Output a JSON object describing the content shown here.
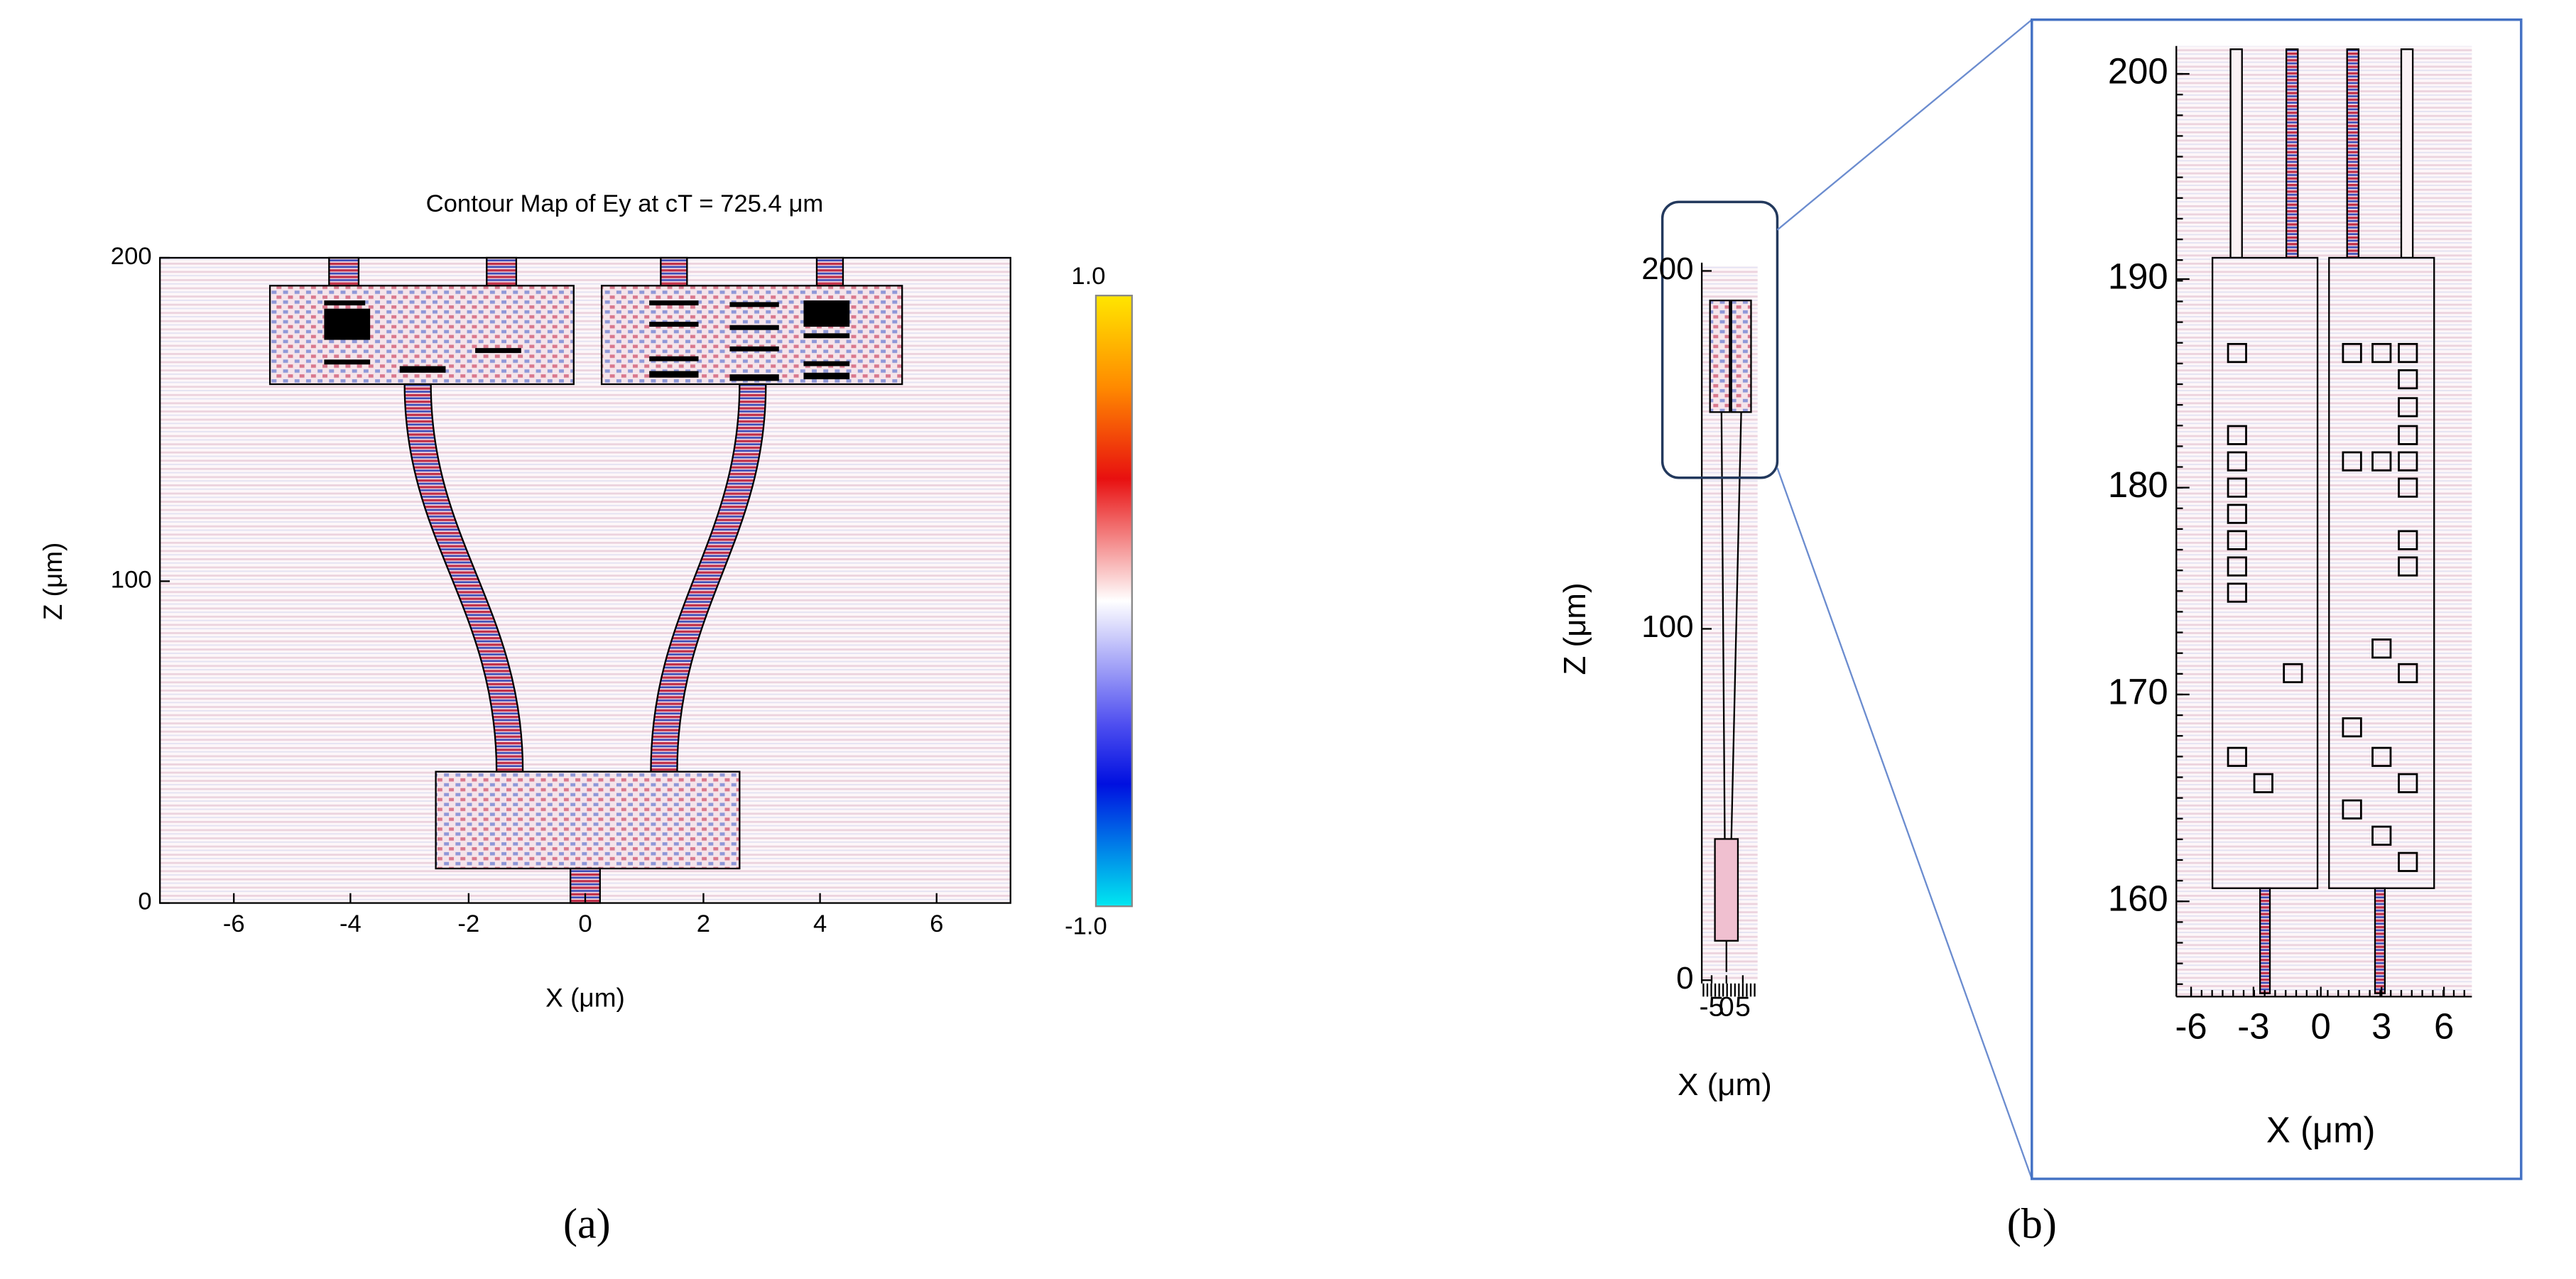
{
  "panels": [
    {
      "label": "(a)",
      "title": "Contour Map of Ey at cT = 725.4 μm",
      "x_axis_label": "X (μm)",
      "y_axis_label": "Z (μm)",
      "x_ticks": [
        "-6",
        "-4",
        "-2",
        "0",
        "2",
        "4",
        "6"
      ],
      "y_ticks": [
        "0",
        "100",
        "200"
      ],
      "colorbar_ticks": [
        "1.0",
        "-1.0"
      ]
    },
    {
      "label": "(b)",
      "overview": {
        "x_axis_label": "X (μm)",
        "y_axis_label": "Z (μm)",
        "x_ticks": [
          "-5",
          "0",
          "5"
        ],
        "y_ticks": [
          "0",
          "100",
          "200"
        ]
      },
      "zoom": {
        "x_axis_label": "X (μm)",
        "x_ticks": [
          "-6",
          "-3",
          "0",
          "3",
          "6"
        ],
        "y_ticks": [
          "160",
          "170",
          "180",
          "190",
          "200"
        ]
      }
    }
  ]
}
